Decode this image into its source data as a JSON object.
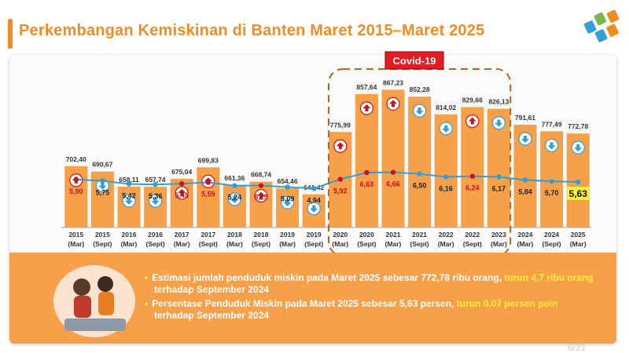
{
  "header": {
    "title": "Perkembangan Kemiskinan di Banten Maret 2015–Maret 2025"
  },
  "covid_label": "Covid-19",
  "info": {
    "bullet1_text": "Estimasi jumlah penduduk miskin pada Maret 2025 sebesar 772,78 ribu orang,",
    "bullet1_highlight": "turun 4,7 ribu orang",
    "bullet1_tail": "terhadap September 2024",
    "bullet2_text": "Persentase Penduduk Miskin pada Maret 2025 sebesar 5,63 persen,",
    "bullet2_highlight": "turun 0,07 persen poin",
    "bullet2_tail": "terhadap September 2024"
  },
  "page_number": "6/21",
  "colors": {
    "bar": "#f7a04a",
    "title": "#f28b20",
    "line": "#2e9fd8",
    "up_marker": "#c7141a",
    "down_marker": "#2e9fd8",
    "highlight_box": "#ffef3a",
    "covid_box": "#e31b23"
  },
  "chart_data": {
    "type": "bar",
    "categories": [
      [
        "2015",
        "(Mar)"
      ],
      [
        "2015",
        "(Sept)"
      ],
      [
        "2016",
        "(Mar)"
      ],
      [
        "2016",
        "(Sept)"
      ],
      [
        "2017",
        "(Mar)"
      ],
      [
        "2017",
        "(Sept)"
      ],
      [
        "2018",
        "(Mar)"
      ],
      [
        "2018",
        "(Sept)"
      ],
      [
        "2019",
        "(Mar)"
      ],
      [
        "2019",
        "(Sept)"
      ],
      [
        "2020",
        "(Mar)"
      ],
      [
        "2020",
        "(Sept)"
      ],
      [
        "2021",
        "(Mar)"
      ],
      [
        "2021",
        "(Sept)"
      ],
      [
        "2022",
        "(Mar)"
      ],
      [
        "2022",
        "(Sept)"
      ],
      [
        "2023",
        "(Mar)"
      ],
      [
        "2024",
        "(Mar)"
      ],
      [
        "2024",
        "(Sept)"
      ],
      [
        "2025",
        "(Mar)"
      ]
    ],
    "series": [
      {
        "kind": "bar",
        "values": [
          702.4,
          690.67,
          658.11,
          657.74,
          675.04,
          699.83,
          661.36,
          668.74,
          654.46,
          641.42,
          775.99,
          857.64,
          867.23,
          852.28,
          814.02,
          829.66,
          826.13,
          791.61,
          777.49,
          772.78
        ],
        "labels": [
          "702,40",
          "690,67",
          "658,11",
          "657,74",
          "675,04",
          "699,83",
          "661,36",
          "668,74",
          "654,46",
          "641,42",
          "775,99",
          "857,64",
          "867,23",
          "852,28",
          "814,02",
          "829,66",
          "826,13",
          "791,61",
          "777,49",
          "772,78"
        ],
        "trend": [
          "up",
          "down",
          "down",
          "down",
          "up",
          "up",
          "down",
          "up",
          "down",
          "down",
          "up",
          "up",
          "up",
          "down",
          "down",
          "up",
          "down",
          "down",
          "down",
          "down"
        ]
      },
      {
        "kind": "line",
        "values": [
          5.9,
          5.75,
          5.42,
          5.36,
          5.45,
          5.59,
          5.24,
          5.25,
          5.09,
          4.94,
          5.92,
          6.63,
          6.66,
          6.5,
          6.16,
          6.24,
          6.17,
          5.84,
          5.7,
          5.63
        ],
        "labels": [
          "5,90",
          "5,75",
          "5,42",
          "5,36",
          "5,45",
          "5,59",
          "5,24",
          "5,25",
          "5,09",
          "4,94",
          "5,92",
          "6,63",
          "6,66",
          "6,50",
          "6,16",
          "6,24",
          "6,17",
          "5,84",
          "5,70",
          "5,63"
        ],
        "trend": [
          "up",
          "down",
          "down",
          "down",
          "up",
          "up",
          "down",
          "up",
          "down",
          "down",
          "up",
          "up",
          "up",
          "down",
          "down",
          "up",
          "down",
          "down",
          "down",
          "down"
        ]
      }
    ],
    "covid_range": [
      "2020 (Mar)",
      "2023 (Mar)"
    ],
    "highlighted_label": "5,63"
  }
}
